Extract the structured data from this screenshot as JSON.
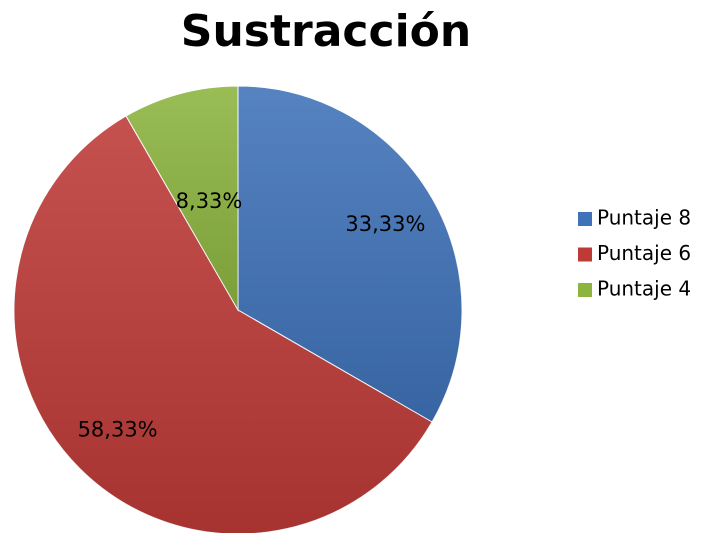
{
  "chart_data": {
    "type": "pie",
    "title": "Sustracción",
    "categories": [
      "Puntaje 8",
      "Puntaje 6",
      "Puntaje 4"
    ],
    "values": [
      33.33,
      58.33,
      8.33
    ],
    "value_labels": [
      "33,33%",
      "58,33%",
      "8,33%"
    ],
    "colors": [
      "#3f72b8",
      "#bd3a37",
      "#8cb43f"
    ],
    "legend": "right"
  }
}
